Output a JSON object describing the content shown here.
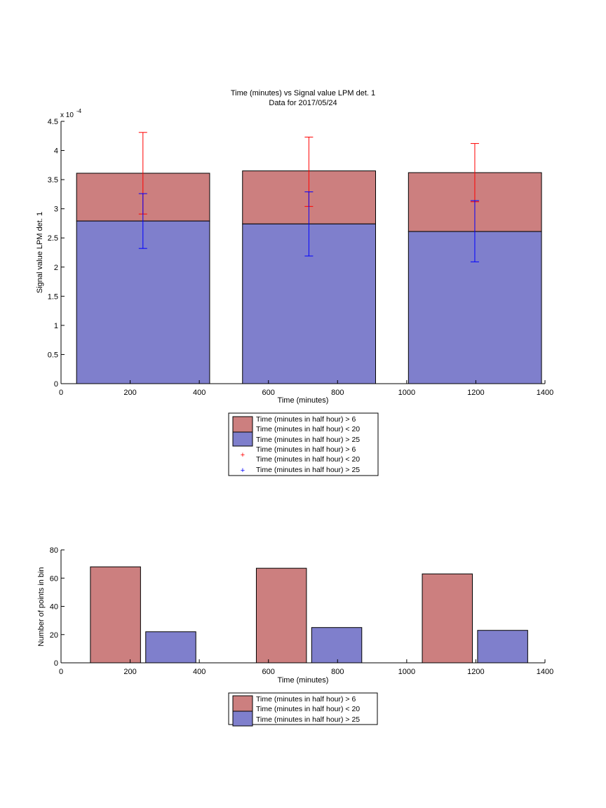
{
  "chart_data": [
    {
      "type": "bar",
      "stacked": true,
      "title": "Time (minutes) vs Signal value LPM det. 1",
      "subtitle": "Data for 2017/05/24",
      "xlabel": "Time (minutes)",
      "ylabel": "Signal value LPM det. 1",
      "y_exponent_label": "x 10",
      "y_exponent": "-4",
      "xlim": [
        0,
        1400
      ],
      "ylim": [
        0,
        4.5
      ],
      "y_scale_factor": 0.0001,
      "xticks": [
        "0",
        "200",
        "400",
        "600",
        "800",
        "1000",
        "1200",
        "1400"
      ],
      "yticks": [
        "0",
        "0.5",
        "1",
        "1.5",
        "2",
        "2.5",
        "3",
        "3.5",
        "4",
        "4.5"
      ],
      "grid": false,
      "legend_position": "below",
      "legend_lines": [
        "Time (minutes in half hour) > 6",
        "Time (minutes in half hour) < 20",
        "Time (minutes in half hour) > 25",
        "Time (minutes in half hour) > 6",
        "Time (minutes in half hour) < 20",
        "Time (minutes in half hour) > 25"
      ],
      "bars": [
        {
          "x_start": 45,
          "x_end": 430,
          "total": 3.61,
          "lower": 2.79
        },
        {
          "x_start": 525,
          "x_end": 910,
          "total": 3.65,
          "lower": 2.74
        },
        {
          "x_start": 1005,
          "x_end": 1390,
          "total": 3.62,
          "lower": 2.61
        }
      ],
      "errorbars": [
        {
          "series": "Time (minutes in half hour) > 6 / < 20",
          "color": "#ff0000",
          "points": [
            {
              "x": 237,
              "y": 3.61,
              "low": 2.91,
              "high": 4.31
            },
            {
              "x": 717,
              "y": 3.65,
              "low": 3.04,
              "high": 4.23
            },
            {
              "x": 1197,
              "y": 3.62,
              "low": 3.12,
              "high": 4.12
            }
          ]
        },
        {
          "series": "Time (minutes in half hour) > 25",
          "color": "#0000ff",
          "points": [
            {
              "x": 237,
              "y": 2.79,
              "low": 2.32,
              "high": 3.26
            },
            {
              "x": 717,
              "y": 2.74,
              "low": 2.19,
              "high": 3.29
            },
            {
              "x": 1197,
              "y": 2.61,
              "low": 2.09,
              "high": 3.14
            }
          ]
        }
      ],
      "colors": {
        "upper": "#cc7f7f",
        "lower": "#7f7fcc"
      }
    },
    {
      "type": "bar",
      "xlabel": "Time (minutes)",
      "ylabel": "Number of points in bin",
      "xlim": [
        0,
        1400
      ],
      "ylim": [
        0,
        80
      ],
      "xticks": [
        "0",
        "200",
        "400",
        "600",
        "800",
        "1000",
        "1200",
        "1400"
      ],
      "yticks": [
        "0",
        "20",
        "40",
        "60",
        "80"
      ],
      "grid": false,
      "legend_position": "below",
      "legend_lines": [
        "Time (minutes in half hour) > 6",
        "Time (minutes in half hour) < 20",
        "Time (minutes in half hour) > 25"
      ],
      "bars": [
        {
          "group": 1,
          "x_start": 85,
          "x_end": 230,
          "value": 68,
          "color": "#cc7f7f"
        },
        {
          "group": 2,
          "x_start": 245,
          "x_end": 390,
          "value": 22,
          "color": "#7f7fcc"
        },
        {
          "group": 1,
          "x_start": 565,
          "x_end": 710,
          "value": 67,
          "color": "#cc7f7f"
        },
        {
          "group": 2,
          "x_start": 725,
          "x_end": 870,
          "value": 25,
          "color": "#7f7fcc"
        },
        {
          "group": 1,
          "x_start": 1045,
          "x_end": 1190,
          "value": 63,
          "color": "#cc7f7f"
        },
        {
          "group": 2,
          "x_start": 1205,
          "x_end": 1350,
          "value": 23,
          "color": "#7f7fcc"
        }
      ]
    }
  ]
}
